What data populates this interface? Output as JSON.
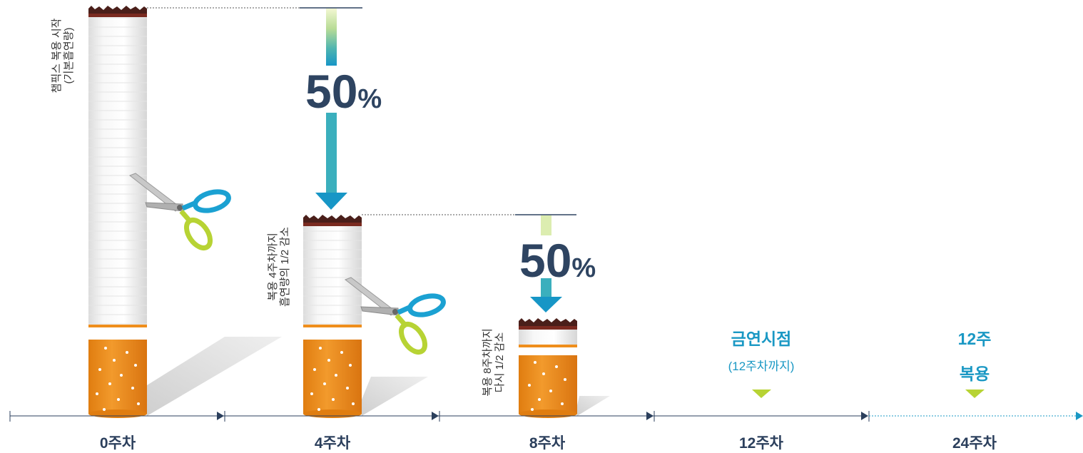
{
  "cigarettes": [
    {
      "label_line1": "챔픽스 복용 시작",
      "label_line2": "(기본흡연량)"
    },
    {
      "label_line1": "복용 4주차까지",
      "label_line2": "흡연량의 1/2 감소"
    },
    {
      "label_line1": "복용 8주차까지",
      "label_line2": "다시 1/2 감소"
    }
  ],
  "reductions": [
    {
      "value": "50",
      "unit": "%"
    },
    {
      "value": "50",
      "unit": "%"
    }
  ],
  "quit_point": {
    "title": "금연시점",
    "subtitle": "(12주차까지)"
  },
  "treatment": {
    "line1": "12주",
    "line2": "복용"
  },
  "timeline": {
    "weeks": [
      "0주차",
      "4주차",
      "8주차",
      "12주차",
      "24주차"
    ]
  },
  "colors": {
    "navy": "#2e4461",
    "teal": "#1a98c4",
    "lime": "#b7d334",
    "filter": "#ef8e1c",
    "blue_handle": "#1ba1d2"
  }
}
